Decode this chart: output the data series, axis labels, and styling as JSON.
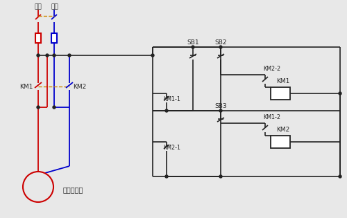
{
  "bg_color": "#e8e8e8",
  "red": "#cc0000",
  "blue": "#0000cc",
  "dark": "#222222",
  "dash_color": "#cc8800",
  "labels": {
    "zhengji": "正极",
    "fuji": "负极",
    "motor": "直流电动机",
    "km1": "KM1",
    "km2": "KM2",
    "sb1": "SB1",
    "sb2": "SB2",
    "sb3": "SB3",
    "km1_1": "KM1-1",
    "km2_1": "KM2-1",
    "km1_2": "KM1-2",
    "km2_2": "KM2-2"
  },
  "figsize": [
    5.0,
    3.15
  ],
  "dpi": 100
}
